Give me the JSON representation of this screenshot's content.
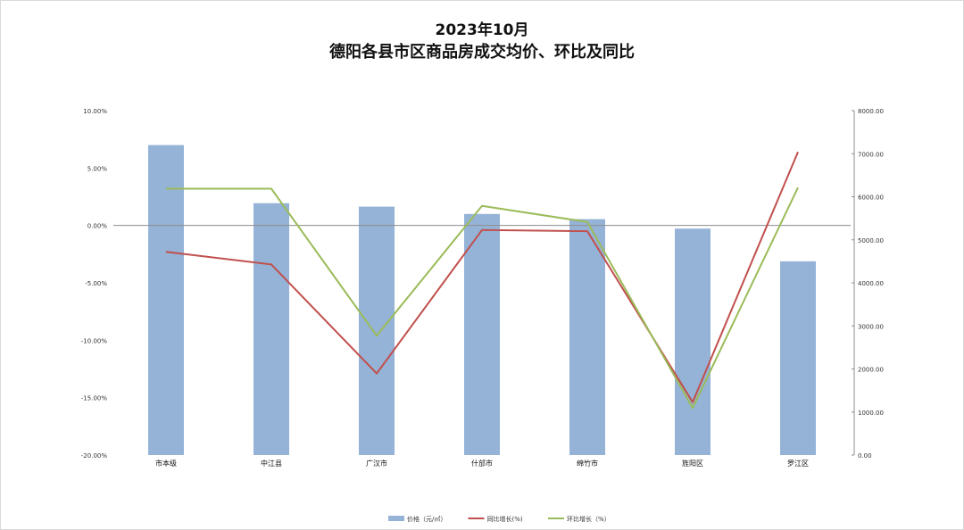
{
  "chart_data": {
    "type": "bar",
    "title_line1": "2023年10月",
    "title_line2": "德阳各县市区商品房成交均价、环比及同比",
    "categories": [
      "市本级",
      "中江县",
      "广汉市",
      "什邡市",
      "绵竹市",
      "旌阳区",
      "罗江区"
    ],
    "left_axis": {
      "ylim": [
        -20,
        10
      ],
      "ticks": [
        "10.00%",
        "5.00%",
        "0.00%",
        "-5.00%",
        "-10.00%",
        "-15.00%",
        "-20.00%"
      ]
    },
    "right_axis": {
      "ylim": [
        0,
        8000
      ],
      "ticks": [
        "8000.00",
        "7000.00",
        "6000.00",
        "5000.00",
        "4000.00",
        "3000.00",
        "2000.00",
        "1000.00",
        "0.00"
      ]
    },
    "series": [
      {
        "name": "价格（元/㎡）",
        "kind": "bar",
        "axis": "right",
        "color": "#95B3D7",
        "values": [
          7200,
          5850,
          5770,
          5600,
          5480,
          5260,
          4500
        ]
      },
      {
        "name": "同比增长(%)",
        "kind": "line",
        "axis": "left",
        "color": "#C0504D",
        "values": [
          -2.3,
          -3.4,
          -12.9,
          -0.4,
          -0.5,
          -15.4,
          6.4
        ]
      },
      {
        "name": "环比增长（%）",
        "kind": "line",
        "axis": "left",
        "color": "#9BBB59",
        "values": [
          3.2,
          3.2,
          -9.6,
          1.7,
          0.3,
          -15.9,
          3.3
        ]
      }
    ],
    "grid": false,
    "legend_position": "bottom"
  }
}
